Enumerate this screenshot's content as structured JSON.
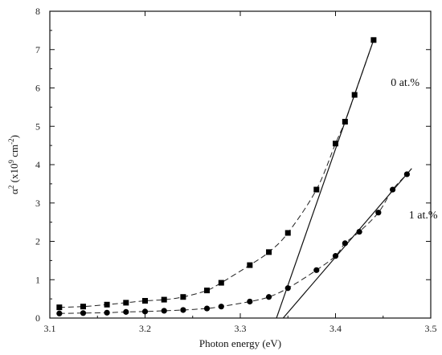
{
  "chart_data": {
    "type": "scatter",
    "title": "",
    "xlabel": "Photon energy (eV)",
    "ylabel_base": "α",
    "ylabel_sup": "2",
    "ylabel_mid": " (x10",
    "ylabel_sup2": "9",
    "ylabel_unit": " cm",
    "ylabel_sup3": "-2",
    "ylabel_end": ")",
    "xlim": [
      3.1,
      3.5
    ],
    "ylim": [
      0,
      8
    ],
    "xticks": [
      "3.1",
      "3.2",
      "3.3",
      "3.4",
      "3.5"
    ],
    "yticks": [
      "0",
      "1",
      "2",
      "3",
      "4",
      "5",
      "6",
      "7",
      "8"
    ],
    "grid": false,
    "series": [
      {
        "name": "0 at.%",
        "marker": "square",
        "x": [
          3.11,
          3.135,
          3.16,
          3.18,
          3.2,
          3.22,
          3.24,
          3.265,
          3.28,
          3.31,
          3.33,
          3.35,
          3.38,
          3.4,
          3.41,
          3.42,
          3.44
        ],
        "y": [
          0.28,
          0.3,
          0.35,
          0.4,
          0.45,
          0.48,
          0.55,
          0.72,
          0.92,
          1.38,
          1.72,
          2.22,
          3.35,
          4.55,
          5.12,
          5.82,
          7.25
        ]
      },
      {
        "name": "1 at.%",
        "marker": "circle",
        "x": [
          3.11,
          3.135,
          3.16,
          3.18,
          3.2,
          3.22,
          3.24,
          3.265,
          3.28,
          3.31,
          3.33,
          3.35,
          3.38,
          3.4,
          3.41,
          3.425,
          3.445,
          3.46,
          3.475
        ],
        "y": [
          0.12,
          0.13,
          0.14,
          0.16,
          0.17,
          0.19,
          0.21,
          0.25,
          0.3,
          0.43,
          0.55,
          0.78,
          1.25,
          1.62,
          1.95,
          2.25,
          2.75,
          3.35,
          3.75
        ]
      }
    ],
    "fit_lines": [
      {
        "x": [
          3.338,
          3.44
        ],
        "y": [
          0,
          7.25
        ]
      },
      {
        "x": [
          3.345,
          3.48
        ],
        "y": [
          0,
          3.9
        ]
      }
    ],
    "annotations": [
      {
        "text": "0 at.%",
        "x": 3.458,
        "y": 6.05
      },
      {
        "text": "1 at.%",
        "x": 3.477,
        "y": 2.6
      }
    ]
  }
}
